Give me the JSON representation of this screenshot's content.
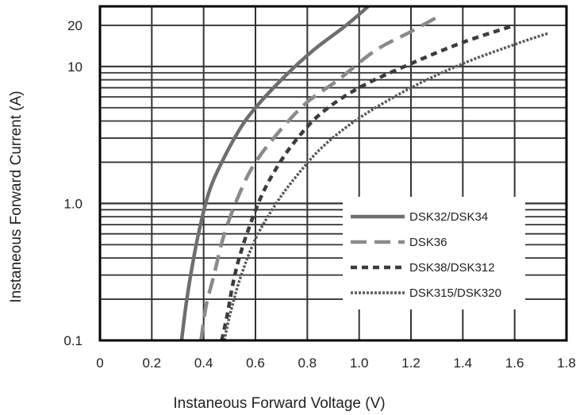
{
  "chart_data": {
    "type": "line",
    "xlabel": "Instaneous Forward Voltage (V)",
    "ylabel": "Instaneous Forward Current  (A)",
    "xlim": [
      0,
      1.8
    ],
    "ylim": [
      0.1,
      30
    ],
    "yscale": "log",
    "grid": true,
    "legend_position": "lower-right",
    "x_ticks": [
      {
        "value": 0,
        "label": "0"
      },
      {
        "value": 0.2,
        "label": "0.2"
      },
      {
        "value": 0.4,
        "label": "0.4"
      },
      {
        "value": 0.6,
        "label": "0.6"
      },
      {
        "value": 0.8,
        "label": "0.8"
      },
      {
        "value": 1.0,
        "label": "1.0"
      },
      {
        "value": 1.2,
        "label": "1.2"
      },
      {
        "value": 1.4,
        "label": "1.4"
      },
      {
        "value": 1.6,
        "label": "1.6"
      },
      {
        "value": 1.8,
        "label": "1.8"
      }
    ],
    "y_ticks": [
      {
        "value": 0.1,
        "label": "0.1"
      },
      {
        "value": 1.0,
        "label": "1.0"
      },
      {
        "value": 10,
        "label": "10"
      },
      {
        "value": 20,
        "label": "20"
      }
    ],
    "series": [
      {
        "name": "DSK32/DSK34",
        "style": "solid",
        "color": "#6e6e6e",
        "x": [
          0.315,
          0.33,
          0.35,
          0.38,
          0.42,
          0.47,
          0.54,
          0.6,
          0.7,
          0.82,
          0.95,
          1.04
        ],
        "y": [
          0.1,
          0.17,
          0.3,
          0.6,
          1.2,
          2.0,
          3.5,
          5.0,
          8.0,
          13.0,
          20.0,
          28.0
        ]
      },
      {
        "name": "DSK36",
        "style": "dashed",
        "color": "#8a8a8a",
        "x": [
          0.39,
          0.41,
          0.44,
          0.48,
          0.54,
          0.6,
          0.7,
          0.8,
          0.92,
          1.06,
          1.2,
          1.32
        ],
        "y": [
          0.1,
          0.18,
          0.3,
          0.6,
          1.2,
          2.0,
          3.5,
          5.5,
          8.0,
          13.0,
          18.0,
          24.0
        ]
      },
      {
        "name": "DSK38/DSK312",
        "style": "dotted",
        "color": "#3c3c3c",
        "x": [
          0.47,
          0.49,
          0.52,
          0.56,
          0.62,
          0.68,
          0.75,
          0.85,
          1.0,
          1.2,
          1.4,
          1.6
        ],
        "y": [
          0.1,
          0.15,
          0.3,
          0.55,
          1.1,
          1.8,
          2.8,
          4.5,
          7.0,
          10.5,
          15.0,
          20.0
        ]
      },
      {
        "name": "DSK315/DSK320",
        "style": "dotted-thin",
        "color": "#5a5a5a",
        "x": [
          0.48,
          0.5,
          0.54,
          0.6,
          0.68,
          0.76,
          0.86,
          1.0,
          1.2,
          1.4,
          1.6,
          1.73
        ],
        "y": [
          0.1,
          0.15,
          0.28,
          0.55,
          1.0,
          1.6,
          2.6,
          4.2,
          7.0,
          10.5,
          14.5,
          17.5
        ]
      }
    ]
  }
}
